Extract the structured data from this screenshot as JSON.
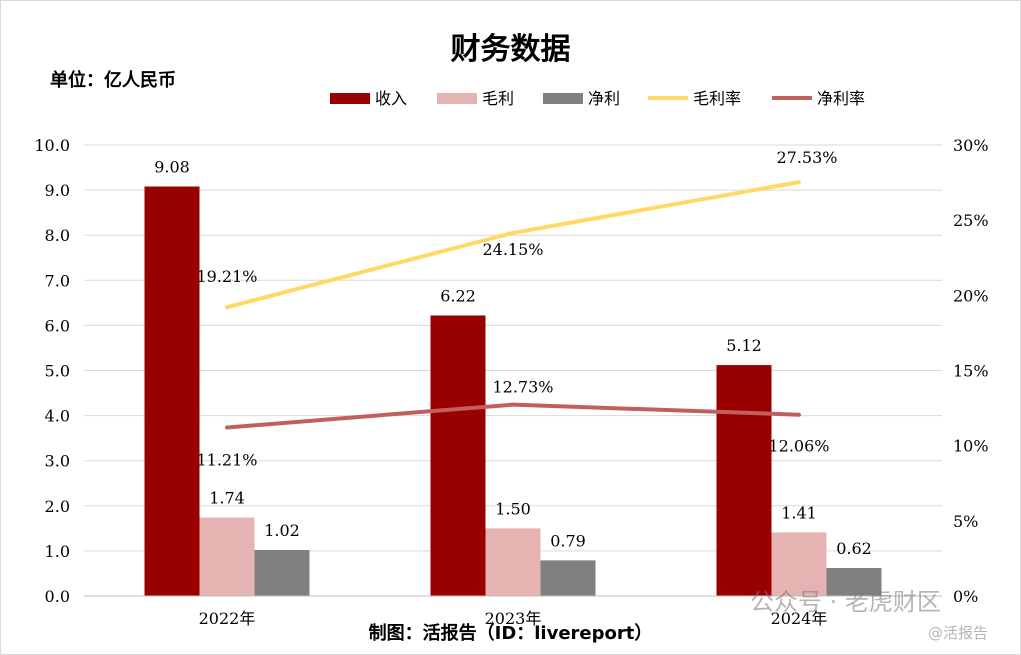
{
  "title": "财务数据",
  "unit_label": "单位：亿人民币",
  "credit": "制图：活报告（ID：livereport）",
  "watermark": {
    "main": "公众号 · 老虎财区",
    "sub": "@活报告"
  },
  "colors": {
    "revenue": "#990000",
    "gross_profit": "#e6b3b3",
    "net_profit": "#808080",
    "gross_margin": "#ffd966",
    "net_margin": "#c0605e",
    "grid": "#d9d9d9"
  },
  "chart_data": {
    "type": "bar",
    "categories": [
      "2022年",
      "2023年",
      "2024年"
    ],
    "series": [
      {
        "name": "收入",
        "values": [
          9.08,
          6.22,
          5.12
        ],
        "labels": [
          "9.08",
          "6.22",
          "5.12"
        ]
      },
      {
        "name": "毛利",
        "values": [
          1.74,
          1.5,
          1.41
        ],
        "labels": [
          "1.74",
          "1.50",
          "1.41"
        ]
      },
      {
        "name": "净利",
        "values": [
          1.02,
          0.79,
          0.62
        ],
        "labels": [
          "1.02",
          "0.79",
          "0.62"
        ]
      }
    ],
    "line_series": [
      {
        "name": "毛利率",
        "axis": "right",
        "values": [
          19.21,
          24.15,
          27.53
        ],
        "labels": [
          "19.21%",
          "24.15%",
          "27.53%"
        ]
      },
      {
        "name": "净利率",
        "axis": "right",
        "values": [
          11.21,
          12.73,
          12.06
        ],
        "labels": [
          "11.21%",
          "12.73%",
          "12.06%"
        ]
      }
    ],
    "ylim": [
      0,
      10
    ],
    "y_ticks": [
      "0.0",
      "1.0",
      "2.0",
      "3.0",
      "4.0",
      "5.0",
      "6.0",
      "7.0",
      "8.0",
      "9.0",
      "10.0"
    ],
    "y2lim": [
      0,
      30
    ],
    "y2_ticks": [
      "0%",
      "5%",
      "10%",
      "15%",
      "20%",
      "25%",
      "30%"
    ],
    "grid": true,
    "legend_position": "top"
  }
}
